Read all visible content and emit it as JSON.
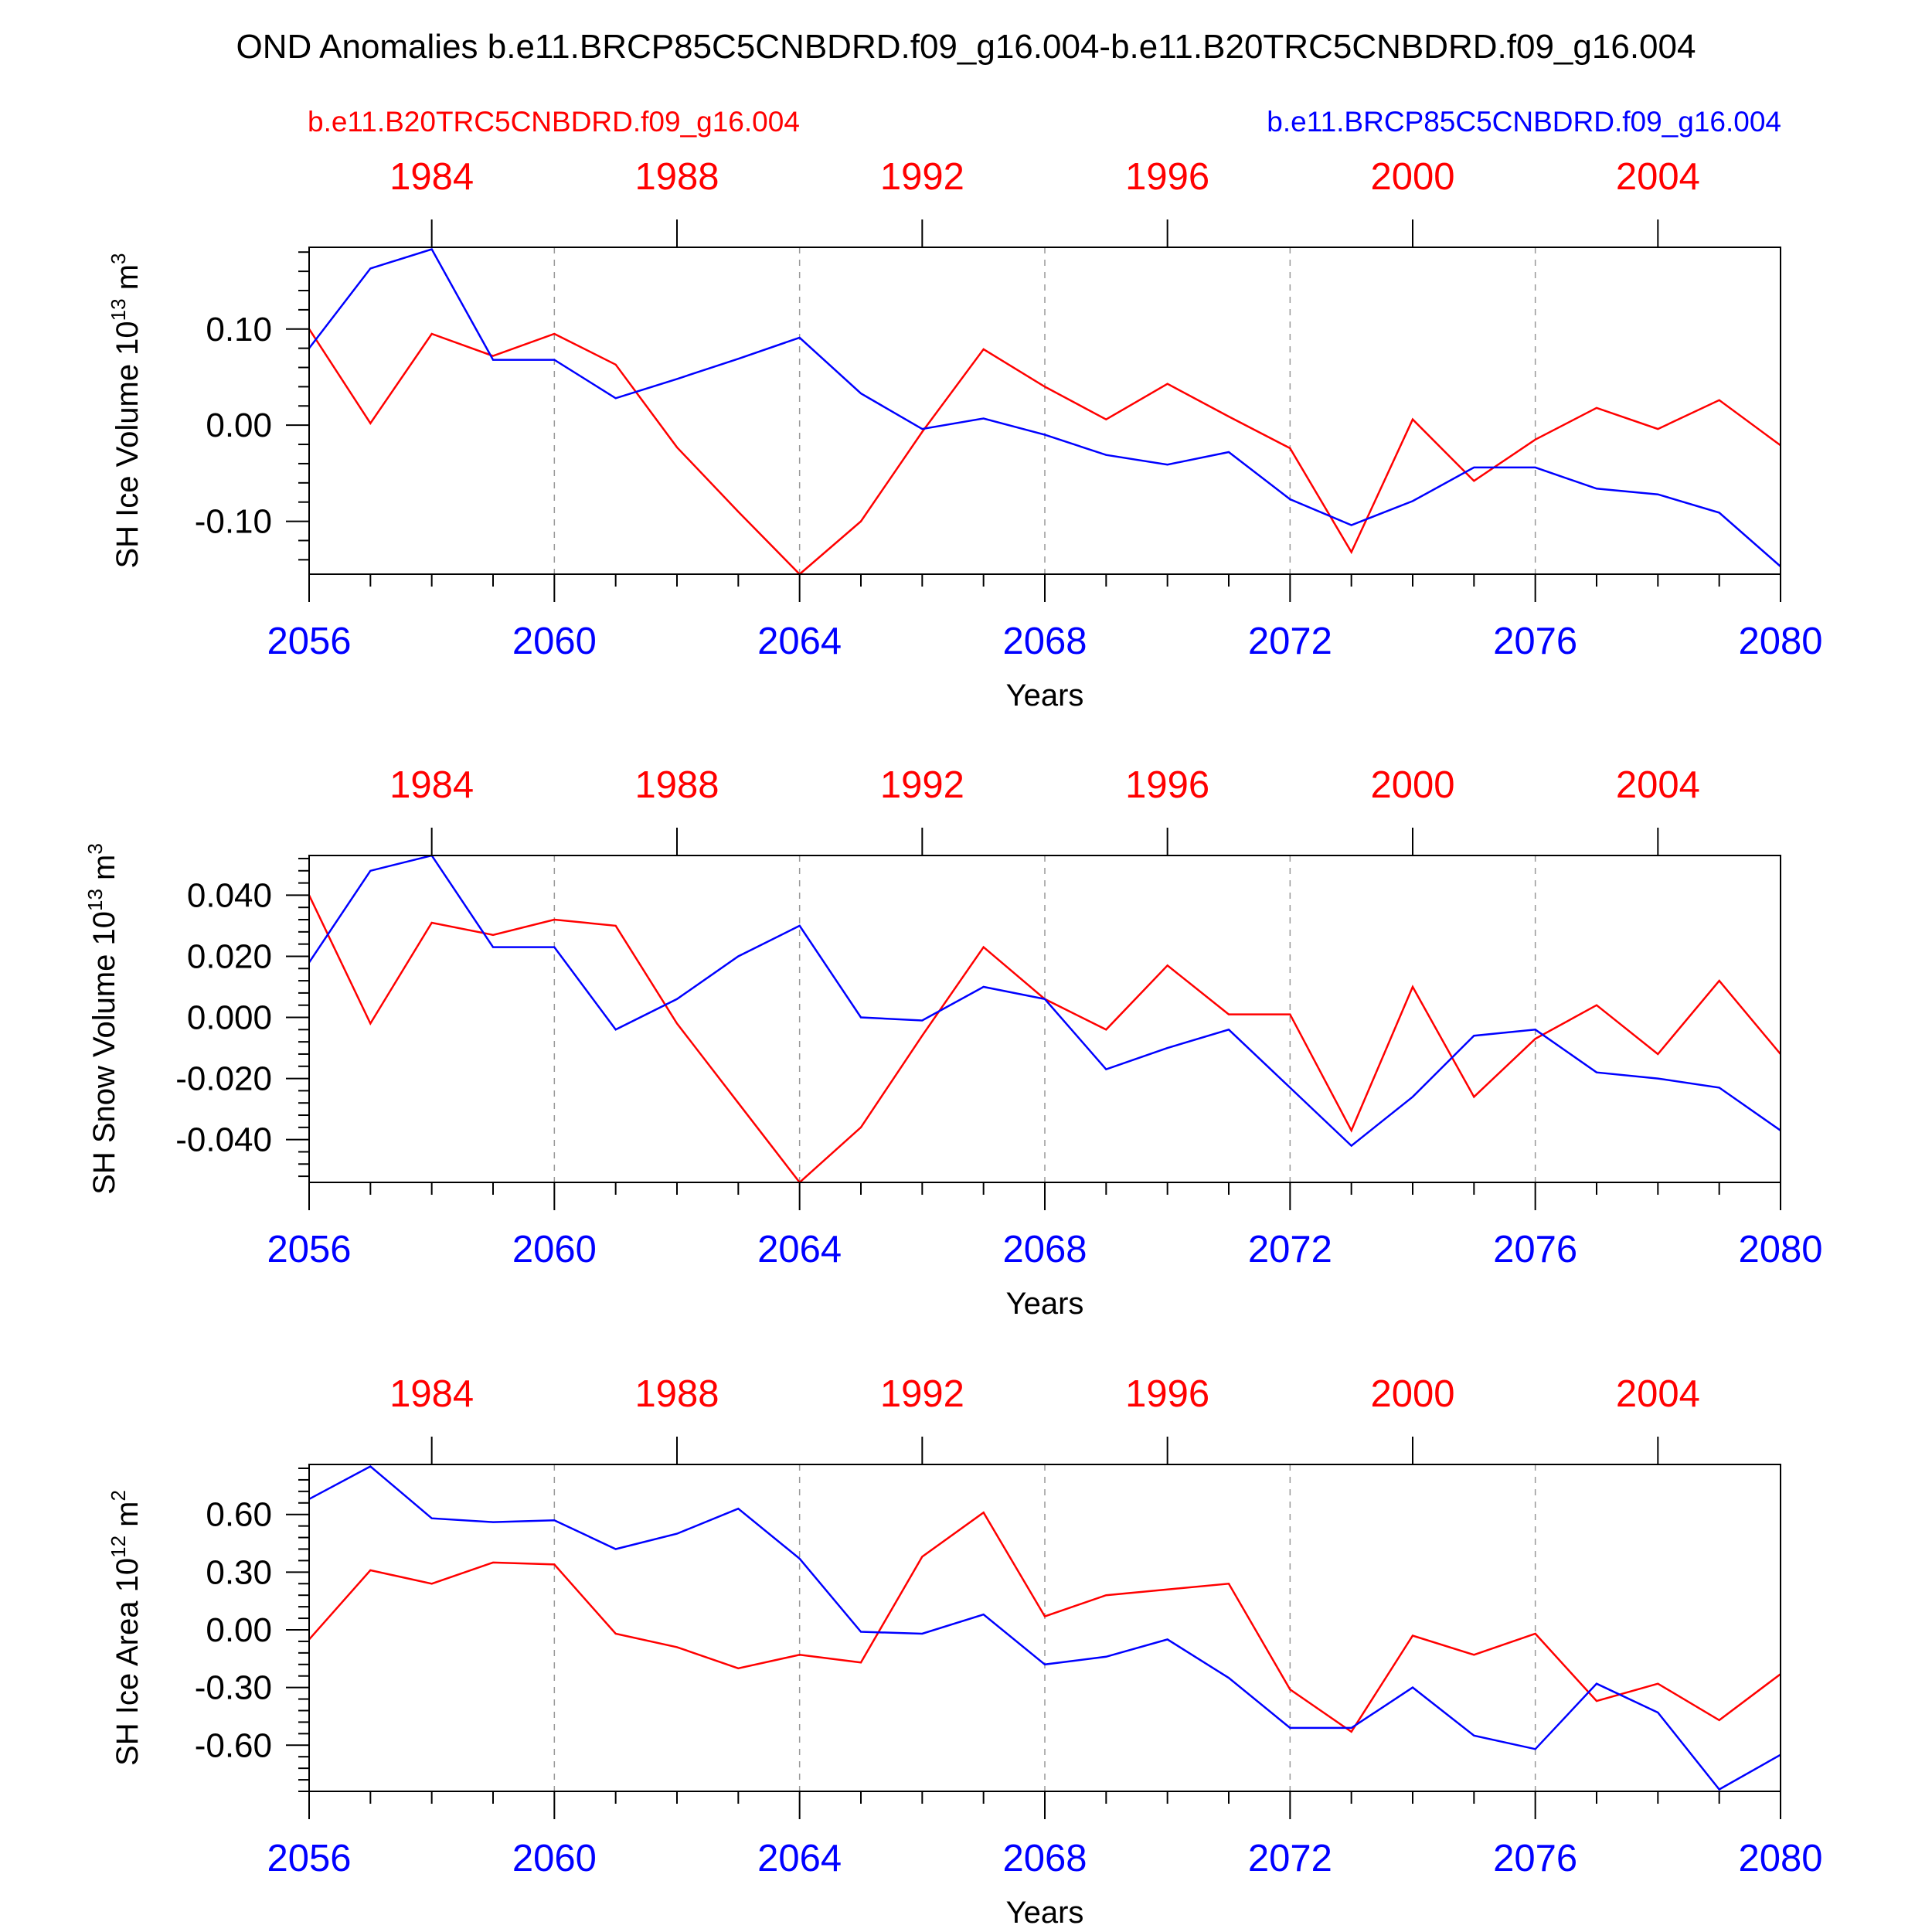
{
  "title": "OND Anomalies b.e11.BRCP85C5CNBDRD.f09_g16.004-b.e11.B20TRC5CNBDRD.f09_g16.004",
  "legend": {
    "left": {
      "text": "b.e11.B20TRC5CNBDRD.f09_g16.004",
      "color": "#ff0000"
    },
    "right": {
      "text": "b.e11.BRCP85C5CNBDRD.f09_g16.004",
      "color": "#0000ff"
    }
  },
  "chart_data": [
    {
      "type": "line",
      "ylabel": "SH Ice Volume 10",
      "ylabel_exp": "13",
      "ylabel_unit": " m",
      "ylabel_unit_exp": "3",
      "xlabel": "Years",
      "xlim": [
        2056,
        2080
      ],
      "ylim": [
        -0.155,
        0.185
      ],
      "yticks": [
        0.1,
        0.0,
        -0.1
      ],
      "ytick_labels": [
        "0.10",
        "0.00",
        "-0.10"
      ],
      "x_ticks": [
        2056,
        2060,
        2064,
        2068,
        2072,
        2076,
        2080
      ],
      "x_tick_labels": [
        "2056",
        "2060",
        "2064",
        "2068",
        "2072",
        "2076",
        "2080"
      ],
      "top_ticks": [
        1984,
        1988,
        1992,
        1996,
        2000,
        2004
      ],
      "top_tick_labels": [
        "1984",
        "1988",
        "1992",
        "1996",
        "2000",
        "2004"
      ],
      "x": [
        2056,
        2057,
        2058,
        2059,
        2060,
        2061,
        2062,
        2063,
        2064,
        2065,
        2066,
        2067,
        2068,
        2069,
        2070,
        2071,
        2072,
        2073,
        2074,
        2075,
        2076,
        2077,
        2078,
        2079,
        2080
      ],
      "series": [
        {
          "name": "b.e11.B20TRC5CNBDRD.f09_g16.004",
          "color": "#ff0000",
          "values": [
            0.1,
            0.002,
            0.095,
            0.072,
            0.095,
            0.063,
            -0.023,
            -0.09,
            -0.155,
            -0.1,
            -0.007,
            0.079,
            0.04,
            0.006,
            0.043,
            0.009,
            -0.024,
            -0.132,
            0.006,
            -0.058,
            -0.015,
            0.018,
            -0.004,
            0.026,
            -0.021
          ]
        },
        {
          "name": "b.e11.BRCP85C5CNBDRD.f09_g16.004",
          "color": "#0000ff",
          "values": [
            0.08,
            0.163,
            0.183,
            0.068,
            0.068,
            0.028,
            0.048,
            0.069,
            0.091,
            0.033,
            -0.004,
            0.007,
            -0.01,
            -0.031,
            -0.041,
            -0.028,
            -0.077,
            -0.104,
            -0.079,
            -0.044,
            -0.044,
            -0.066,
            -0.072,
            -0.091,
            -0.147
          ]
        }
      ]
    },
    {
      "type": "line",
      "ylabel": "SH Snow Volume 10",
      "ylabel_exp": "13",
      "ylabel_unit": " m",
      "ylabel_unit_exp": "3",
      "xlabel": "Years",
      "xlim": [
        2056,
        2080
      ],
      "ylim": [
        -0.054,
        0.053
      ],
      "yticks": [
        0.04,
        0.02,
        0.0,
        -0.02,
        -0.04
      ],
      "ytick_labels": [
        "0.040",
        "0.020",
        "0.000",
        "-0.020",
        "-0.040"
      ],
      "x_ticks": [
        2056,
        2060,
        2064,
        2068,
        2072,
        2076,
        2080
      ],
      "x_tick_labels": [
        "2056",
        "2060",
        "2064",
        "2068",
        "2072",
        "2076",
        "2080"
      ],
      "top_ticks": [
        1984,
        1988,
        1992,
        1996,
        2000,
        2004
      ],
      "top_tick_labels": [
        "1984",
        "1988",
        "1992",
        "1996",
        "2000",
        "2004"
      ],
      "x": [
        2056,
        2057,
        2058,
        2059,
        2060,
        2061,
        2062,
        2063,
        2064,
        2065,
        2066,
        2067,
        2068,
        2069,
        2070,
        2071,
        2072,
        2073,
        2074,
        2075,
        2076,
        2077,
        2078,
        2079,
        2080
      ],
      "series": [
        {
          "name": "b.e11.B20TRC5CNBDRD.f09_g16.004",
          "color": "#ff0000",
          "values": [
            0.04,
            -0.002,
            0.031,
            0.027,
            0.032,
            0.03,
            -0.002,
            -0.028,
            -0.054,
            -0.036,
            -0.006,
            0.023,
            0.006,
            -0.004,
            0.017,
            0.001,
            0.001,
            -0.037,
            0.01,
            -0.026,
            -0.007,
            0.004,
            -0.012,
            0.012,
            -0.012
          ]
        },
        {
          "name": "b.e11.BRCP85C5CNBDRD.f09_g16.004",
          "color": "#0000ff",
          "values": [
            0.018,
            0.048,
            0.053,
            0.023,
            0.023,
            -0.004,
            0.006,
            0.02,
            0.03,
            0.0,
            -0.001,
            0.01,
            0.006,
            -0.017,
            -0.01,
            -0.004,
            -0.023,
            -0.042,
            -0.026,
            -0.006,
            -0.004,
            -0.018,
            -0.02,
            -0.023,
            -0.037
          ]
        }
      ]
    },
    {
      "type": "line",
      "ylabel": "SH Ice Area 10",
      "ylabel_exp": "12",
      "ylabel_unit": " m",
      "ylabel_unit_exp": "2",
      "xlabel": "Years",
      "xlim": [
        2056,
        2080
      ],
      "ylim": [
        -0.84,
        0.86
      ],
      "yticks": [
        0.6,
        0.3,
        0.0,
        -0.3,
        -0.6
      ],
      "ytick_labels": [
        "0.60",
        "0.30",
        "0.00",
        "-0.30",
        "-0.60"
      ],
      "x_ticks": [
        2056,
        2060,
        2064,
        2068,
        2072,
        2076,
        2080
      ],
      "x_tick_labels": [
        "2056",
        "2060",
        "2064",
        "2068",
        "2072",
        "2076",
        "2080"
      ],
      "top_ticks": [
        1984,
        1988,
        1992,
        1996,
        2000,
        2004
      ],
      "top_tick_labels": [
        "1984",
        "1988",
        "1992",
        "1996",
        "2000",
        "2004"
      ],
      "x": [
        2056,
        2057,
        2058,
        2059,
        2060,
        2061,
        2062,
        2063,
        2064,
        2065,
        2066,
        2067,
        2068,
        2069,
        2070,
        2071,
        2072,
        2073,
        2074,
        2075,
        2076,
        2077,
        2078,
        2079,
        2080
      ],
      "series": [
        {
          "name": "b.e11.B20TRC5CNBDRD.f09_g16.004",
          "color": "#ff0000",
          "values": [
            -0.05,
            0.31,
            0.24,
            0.35,
            0.34,
            -0.02,
            -0.09,
            -0.2,
            -0.13,
            -0.17,
            0.38,
            0.61,
            0.07,
            0.18,
            0.21,
            0.24,
            -0.31,
            -0.53,
            -0.03,
            -0.13,
            -0.02,
            -0.37,
            -0.28,
            -0.47,
            -0.23
          ]
        },
        {
          "name": "b.e11.BRCP85C5CNBDRD.f09_g16.004",
          "color": "#0000ff",
          "values": [
            0.68,
            0.85,
            0.58,
            0.56,
            0.57,
            0.42,
            0.5,
            0.63,
            0.37,
            -0.01,
            -0.02,
            0.08,
            -0.18,
            -0.14,
            -0.05,
            -0.25,
            -0.51,
            -0.51,
            -0.3,
            -0.55,
            -0.62,
            -0.28,
            -0.43,
            -0.83,
            -0.65
          ]
        }
      ]
    }
  ]
}
